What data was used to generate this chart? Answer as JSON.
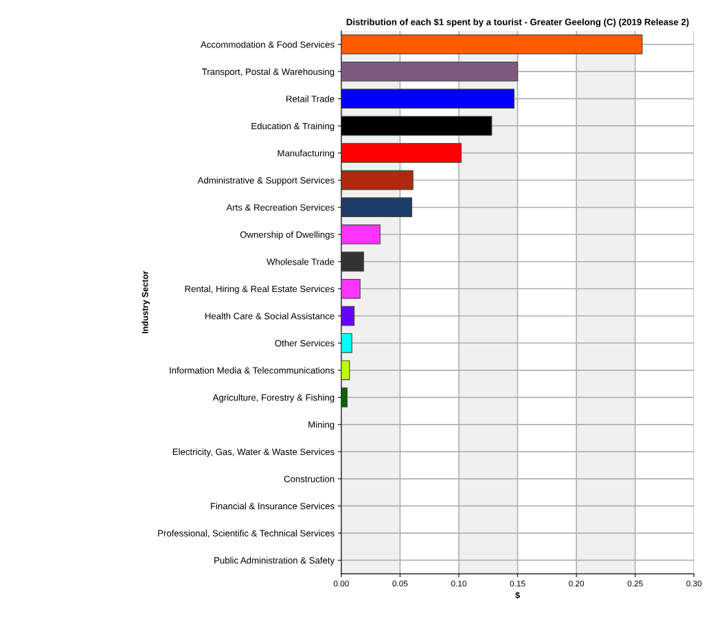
{
  "chart_data": {
    "type": "bar",
    "orientation": "horizontal",
    "title": "Distribution of each $1 spent by a tourist - Greater Geelong (C) (2019 Release 2)",
    "xlabel": "$",
    "ylabel": "Industry Sector",
    "categories": [
      "Accommodation & Food Services",
      "Transport, Postal & Warehousing",
      "Retail Trade",
      "Education & Training",
      "Manufacturing",
      "Administrative & Support Services",
      "Arts & Recreation Services",
      "Ownership of Dwellings",
      "Wholesale Trade",
      "Rental, Hiring & Real Estate Services",
      "Health Care & Social Assistance",
      "Other Services",
      "Information Media & Telecommunications",
      "Agriculture, Forestry & Fishing",
      "Mining",
      "Electricity, Gas, Water & Waste Services",
      "Construction",
      "Financial & Insurance Services",
      "Professional, Scientific & Technical Services",
      "Public Administration & Safety"
    ],
    "values": [
      0.256,
      0.15,
      0.147,
      0.128,
      0.102,
      0.061,
      0.06,
      0.033,
      0.019,
      0.016,
      0.011,
      0.009,
      0.007,
      0.005,
      0,
      0,
      0,
      0,
      0,
      0
    ],
    "colors": [
      "#ff5a00",
      "#7f5a80",
      "#0000ff",
      "#000000",
      "#ff0000",
      "#b0290f",
      "#1e3c6a",
      "#ff33ff",
      "#333333",
      "#ff33ff",
      "#6600ff",
      "#00ffff",
      "#bbff00",
      "#006600",
      null,
      null,
      null,
      null,
      null,
      null
    ],
    "xlim": [
      0,
      0.3
    ],
    "xticks": [
      {
        "value": 0,
        "label": "0.00"
      },
      {
        "value": 0.05,
        "label": "0.05"
      },
      {
        "value": 0.1,
        "label": "0.10"
      },
      {
        "value": 0.15,
        "label": "0.15"
      },
      {
        "value": 0.2,
        "label": "0.20"
      },
      {
        "value": 0.25,
        "label": "0.25"
      },
      {
        "value": 0.3,
        "label": "0.30"
      }
    ],
    "bands": [
      {
        "axis": "x",
        "from": 0,
        "to": 0.05,
        "color": "#f0f0f0"
      },
      {
        "axis": "x",
        "from": 0.1,
        "to": 0.15,
        "color": "#f0f0f0"
      },
      {
        "axis": "x",
        "from": 0.2,
        "to": 0.25,
        "color": "#f0f0f0"
      }
    ],
    "grid": true,
    "legend": false
  }
}
